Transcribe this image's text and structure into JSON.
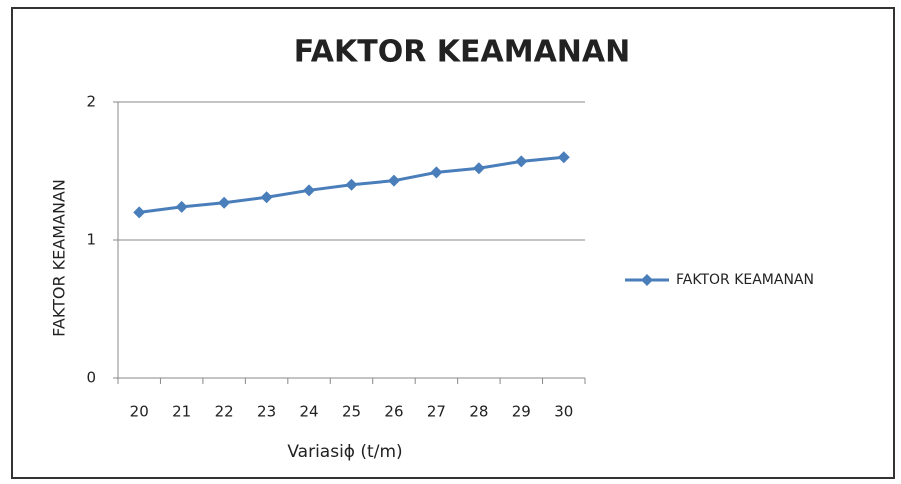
{
  "chart_data": {
    "type": "line",
    "title": "FAKTOR KEAMANAN",
    "x_label": "Variasiϕ (t/m)",
    "y_label": "FAKTOR KEAMANAN",
    "categories": [
      "20",
      "21",
      "22",
      "23",
      "24",
      "25",
      "26",
      "27",
      "28",
      "29",
      "30"
    ],
    "series": [
      {
        "name": "FAKTOR KEAMANAN",
        "color": "#4a7ebb",
        "values": [
          1.2,
          1.24,
          1.27,
          1.31,
          1.36,
          1.4,
          1.43,
          1.49,
          1.52,
          1.57,
          1.6
        ]
      }
    ],
    "ylim": [
      0,
      2
    ],
    "yticks": [
      0,
      1,
      2
    ],
    "grid": true,
    "legend": "right"
  }
}
